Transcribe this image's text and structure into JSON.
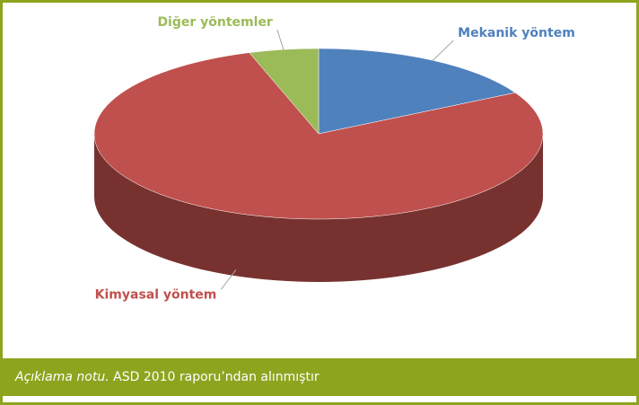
{
  "chart_data": {
    "type": "pie",
    "categories": [
      "Mekanik yöntem",
      "Kimyasal yöntem",
      "Diğer yöntemler"
    ],
    "values": [
      17,
      78,
      5
    ],
    "colors": [
      "#4f81bd",
      "#c0504d",
      "#9bbb59"
    ]
  },
  "caption": {
    "note": "Açıklama notu.",
    "text": "ASD 2010 raporu’ndan alınmıştır"
  }
}
